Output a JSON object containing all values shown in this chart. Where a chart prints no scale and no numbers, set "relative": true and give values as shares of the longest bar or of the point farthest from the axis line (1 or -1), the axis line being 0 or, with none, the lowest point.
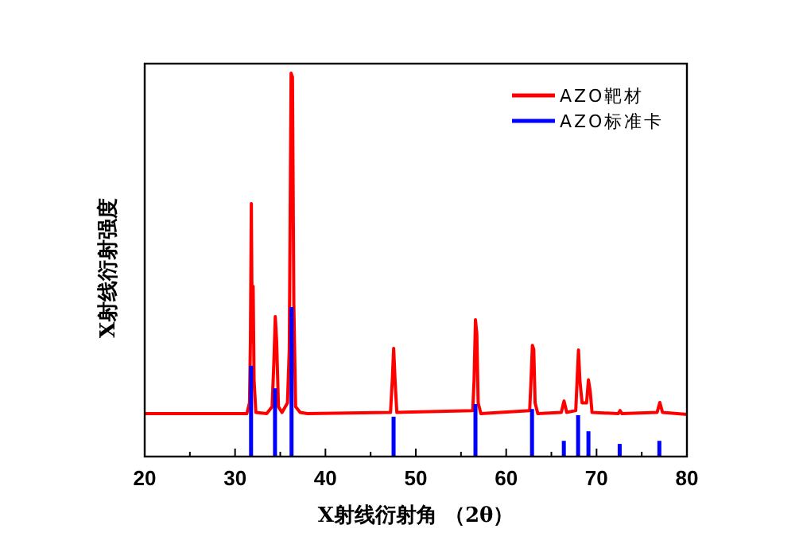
{
  "chart_data": {
    "type": "line",
    "relative": true,
    "xlabel": "X射线衍射角 （2θ）",
    "ylabel": "X射线衍射强度",
    "xlim": [
      20,
      80
    ],
    "xticks": [
      20,
      {
        "value": 25,
        "label": null
      },
      30,
      {
        "value": 35,
        "label": null
      },
      40,
      {
        "value": 45,
        "label": null
      },
      50,
      {
        "value": 55,
        "label": null
      },
      60,
      {
        "value": 65,
        "label": null
      },
      70,
      {
        "value": 75,
        "label": null
      },
      80
    ],
    "grid": false,
    "legend": "top right",
    "series": [
      {
        "name": "AZO靶材",
        "color": "#ff0000",
        "x": [
          20,
          31.3,
          31.6,
          31.7,
          31.8,
          31.9,
          32.0,
          32.1,
          32.3,
          33.5,
          34.1,
          34.3,
          34.45,
          34.6,
          34.8,
          35.2,
          35.8,
          36.0,
          36.2,
          36.35,
          36.5,
          36.7,
          37.2,
          38,
          47.2,
          47.4,
          47.55,
          47.7,
          47.9,
          56.3,
          56.45,
          56.6,
          56.75,
          56.9,
          57.2,
          62.6,
          62.75,
          62.9,
          63.05,
          63.2,
          63.5,
          66.1,
          66.4,
          66.7,
          67.7,
          67.85,
          68.0,
          68.15,
          68.4,
          68.9,
          69.1,
          69.3,
          69.5,
          72.4,
          72.6,
          72.8,
          76.7,
          77.0,
          77.3,
          80
        ],
        "values": [
          0.112,
          0.112,
          0.14,
          0.3,
          0.66,
          0.3,
          0.444,
          0.2,
          0.115,
          0.112,
          0.13,
          0.25,
          0.365,
          0.3,
          0.13,
          0.115,
          0.14,
          0.28,
          1.0,
          0.99,
          0.4,
          0.13,
          0.115,
          0.112,
          0.115,
          0.2,
          0.282,
          0.2,
          0.115,
          0.12,
          0.2,
          0.357,
          0.32,
          0.14,
          0.112,
          0.12,
          0.2,
          0.29,
          0.28,
          0.14,
          0.112,
          0.115,
          0.145,
          0.115,
          0.12,
          0.2,
          0.278,
          0.2,
          0.14,
          0.14,
          0.2,
          0.17,
          0.115,
          0.112,
          0.12,
          0.112,
          0.115,
          0.141,
          0.115,
          0.11
        ]
      },
      {
        "name": "AZO标准卡",
        "color": "#0000ff",
        "type": "bar",
        "x": [
          31.77,
          34.42,
          36.25,
          47.54,
          56.6,
          62.86,
          66.38,
          67.96,
          69.1,
          72.56,
          76.95
        ],
        "values": [
          0.237,
          0.178,
          0.39,
          0.104,
          0.137,
          0.124,
          0.041,
          0.108,
          0.066,
          0.033,
          0.041
        ]
      }
    ]
  }
}
